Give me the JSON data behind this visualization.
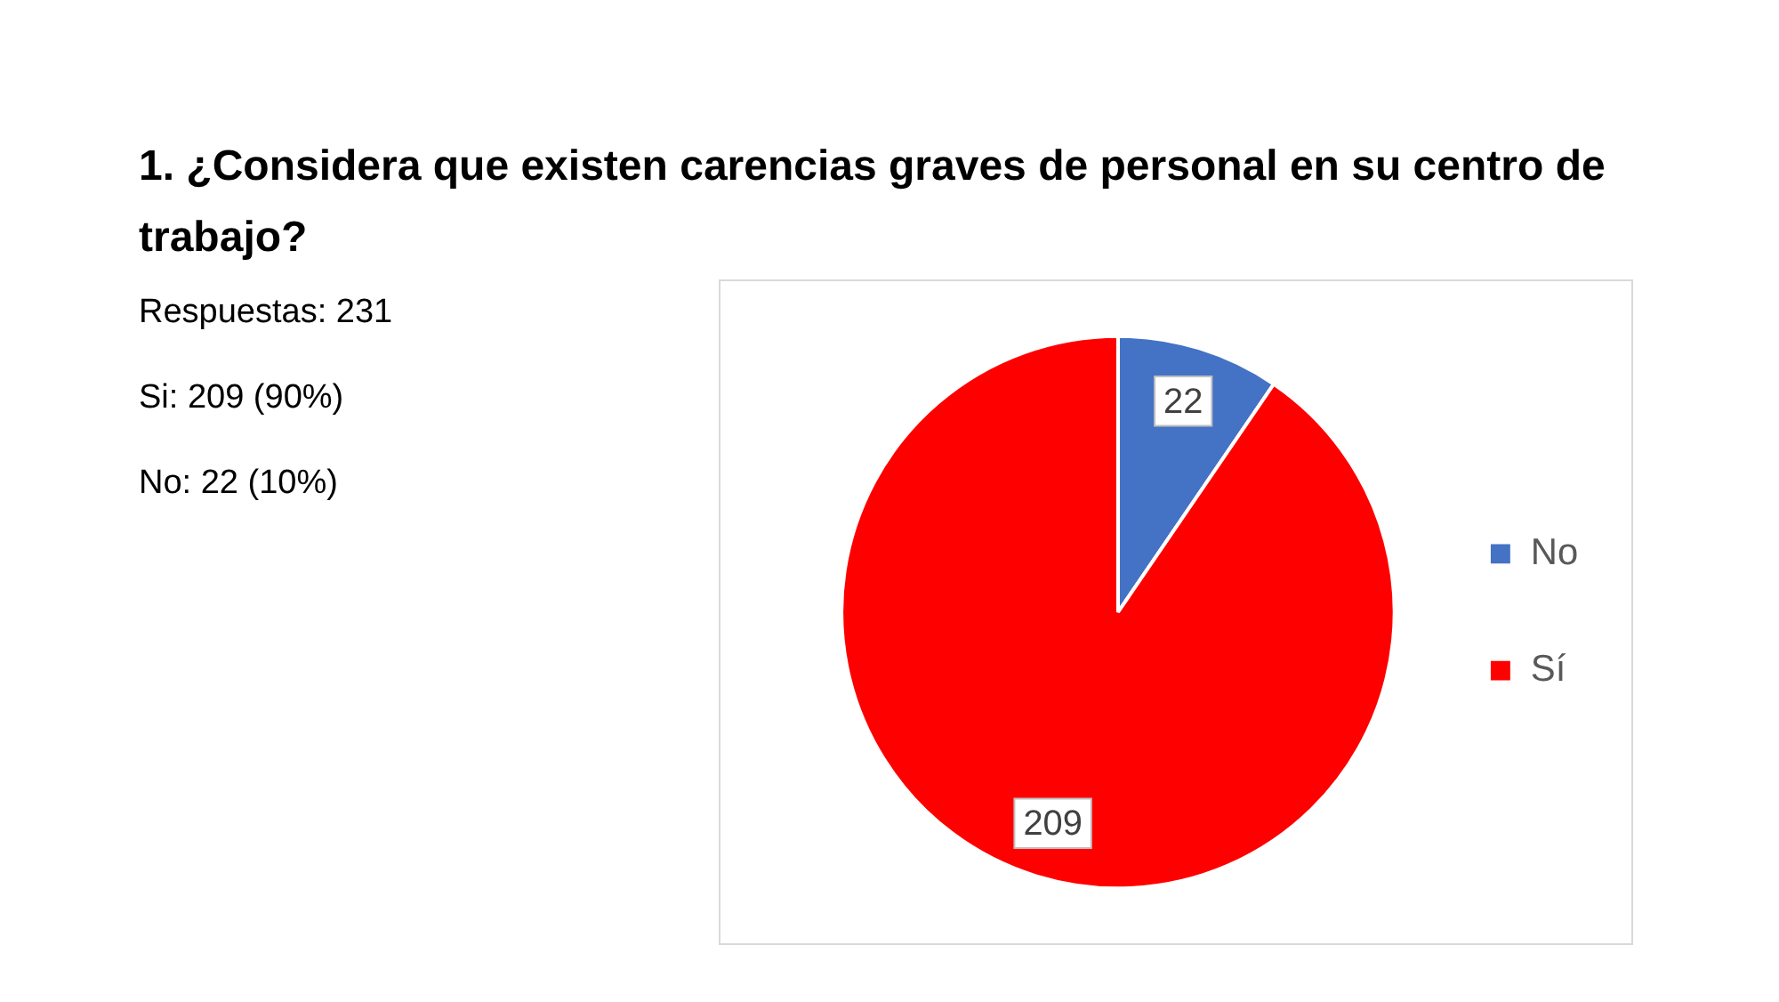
{
  "chart_data": {
    "type": "pie",
    "title": "1. ¿Considera que existen carencias graves de personal en su centro de trabajo?",
    "categories": [
      "No",
      "Sí"
    ],
    "values": [
      22,
      209
    ],
    "colors": [
      "#4472c4",
      "#ff0000"
    ],
    "data_labels": true,
    "legend": "right",
    "annotations": [
      "Respuestas: 231",
      "Si: 209 (90%)",
      "No: 22 (10%)"
    ]
  }
}
